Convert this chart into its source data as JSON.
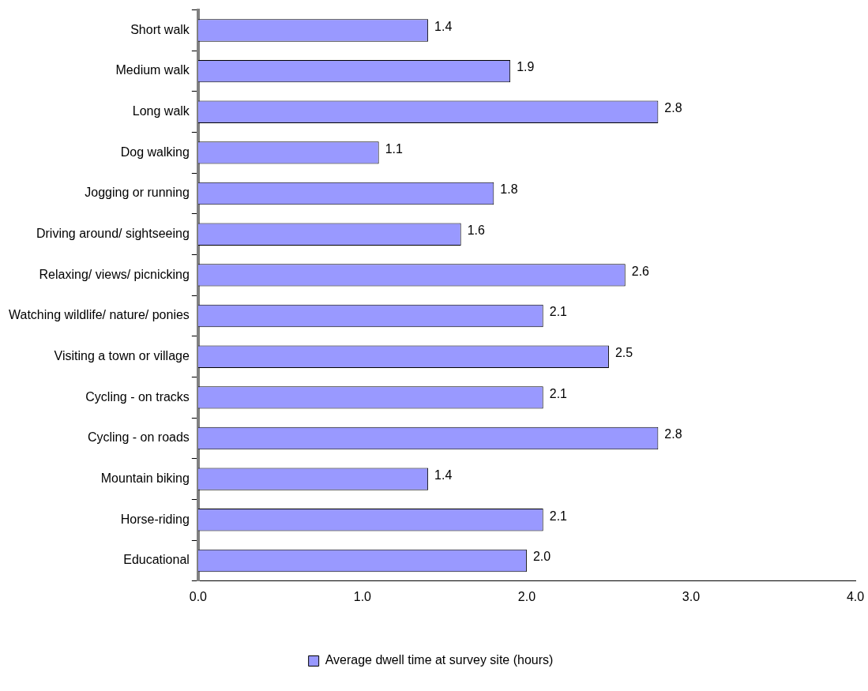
{
  "chart_data": {
    "type": "bar",
    "orientation": "horizontal",
    "categories": [
      "Short walk",
      "Medium walk",
      "Long walk",
      "Dog walking",
      "Jogging or running",
      "Driving around/ sightseeing",
      "Relaxing/ views/ picnicking",
      "Watching wildlife/ nature/ ponies",
      "Visiting a town or village",
      "Cycling - on tracks",
      "Cycling - on roads",
      "Mountain biking",
      "Horse-riding",
      "Educational"
    ],
    "series": [
      {
        "name": "Average dwell time at survey site (hours)",
        "color": "#9999ff",
        "values": [
          1.4,
          1.9,
          2.8,
          1.1,
          1.8,
          1.6,
          2.6,
          2.1,
          2.5,
          2.1,
          2.8,
          1.4,
          2.1,
          2.0
        ],
        "value_labels": [
          "1.4",
          "1.9",
          "2.8",
          "1.1",
          "1.8",
          "1.6",
          "2.6",
          "2.1",
          "2.5",
          "2.1",
          "2.8",
          "1.4",
          "2.1",
          "2.0"
        ]
      }
    ],
    "xlim": [
      0,
      4
    ],
    "xticks": [
      {
        "value": 0,
        "label": "0.0"
      },
      {
        "value": 1,
        "label": "1.0"
      },
      {
        "value": 2,
        "label": "2.0"
      },
      {
        "value": 3,
        "label": "3.0"
      },
      {
        "value": 4,
        "label": "4.0"
      }
    ],
    "grid": false,
    "legend": "bottom"
  }
}
